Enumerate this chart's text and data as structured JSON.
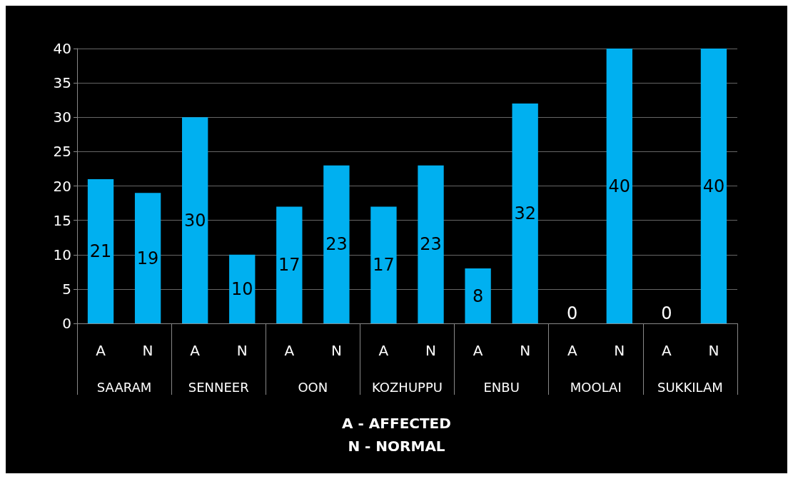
{
  "chart_data": {
    "type": "bar",
    "xlabel": "A - AFFECTED\nN - NORMAL",
    "categories": [
      "A",
      "N",
      "A",
      "N",
      "A",
      "N",
      "A",
      "N",
      "A",
      "N",
      "A",
      "N",
      "A",
      "N"
    ],
    "values": [
      21,
      19,
      30,
      10,
      17,
      23,
      17,
      23,
      8,
      32,
      0,
      40,
      0,
      40
    ],
    "color": "#00b0f0",
    "ylim": [
      0,
      40
    ],
    "yticks": [
      0,
      5,
      10,
      15,
      20,
      25,
      30,
      35,
      40
    ],
    "grid": "y",
    "data_labels": true,
    "annotations": [
      "SAARAM",
      "SENNEER",
      "OON",
      "KOZHUPPU",
      "ENBU",
      "MOOLAI",
      "SUKKILAM"
    ]
  }
}
